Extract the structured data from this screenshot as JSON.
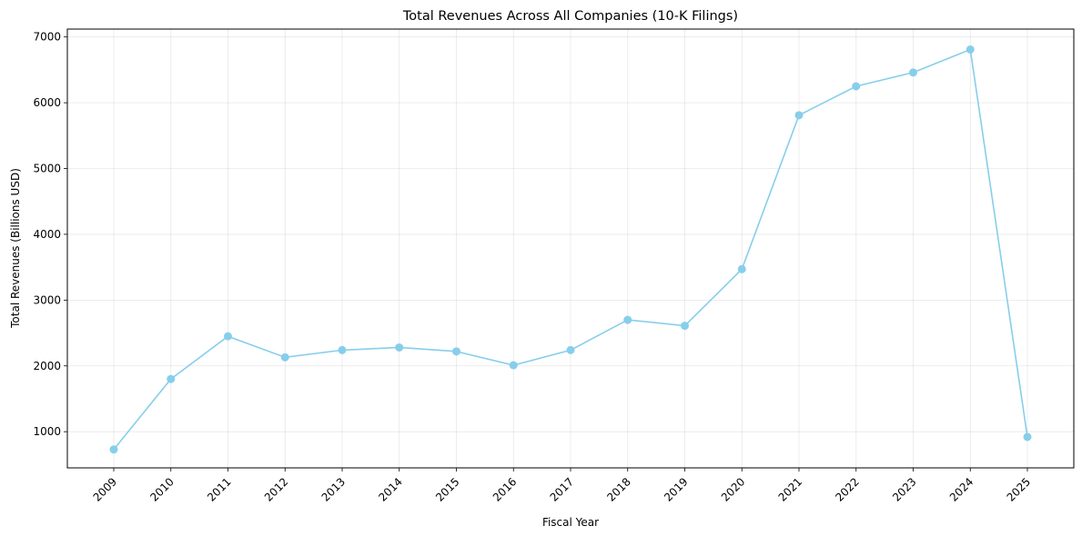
{
  "chart_data": {
    "type": "line",
    "title": "Total Revenues Across All Companies (10-K Filings)",
    "xlabel": "Fiscal Year",
    "ylabel": "Total Revenues (Billions USD)",
    "ylim": [
      450,
      7120
    ],
    "yticks": [
      1000,
      2000,
      3000,
      4000,
      5000,
      6000,
      7000
    ],
    "grid": true,
    "line_color": "#87CEEB",
    "categories": [
      "2009",
      "2010",
      "2011",
      "2012",
      "2013",
      "2014",
      "2015",
      "2016",
      "2017",
      "2018",
      "2019",
      "2020",
      "2021",
      "2022",
      "2023",
      "2024",
      "2025"
    ],
    "series": [
      {
        "values": [
          730,
          1800,
          2450,
          2130,
          2240,
          2280,
          2220,
          2010,
          2240,
          2700,
          2610,
          3470,
          5810,
          6250,
          6460,
          6810,
          920
        ]
      }
    ]
  }
}
